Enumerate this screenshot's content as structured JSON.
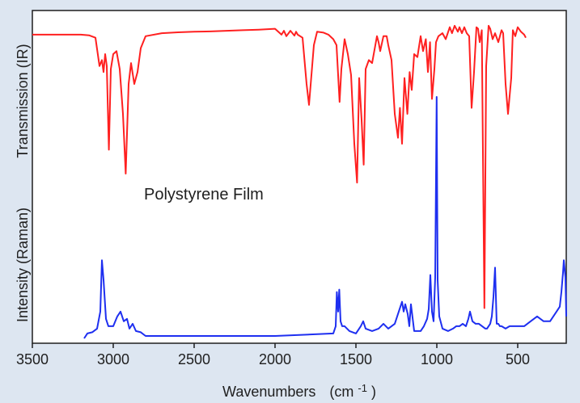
{
  "chart_data": {
    "type": "line",
    "title": "",
    "annotation": "Polystyrene Film",
    "xlabel": "Wavenumbers",
    "xlabel_unit_base": "(cm",
    "xlabel_unit_sup": "-1",
    "xlabel_unit_close": ")",
    "ylabel_top": "Transmission (IR)",
    "ylabel_bottom": "Intensity (Raman)",
    "xlim": [
      3500,
      200
    ],
    "x_reversed": true,
    "x_ticks": [
      3500,
      3000,
      2500,
      2000,
      1500,
      1000,
      500
    ],
    "x_tick_labels": [
      "3500",
      "3000",
      "2500",
      "2000",
      "1500",
      "1000",
      "500"
    ],
    "y_ticks_shown": false,
    "grid": false,
    "legend": "none",
    "series": [
      {
        "color": "#ff2020",
        "baseline_value": 0.965,
        "x": [
          3500,
          3200,
          3150,
          3110,
          3085,
          3070,
          3060,
          3050,
          3040,
          3027,
          3015,
          3000,
          2980,
          2960,
          2940,
          2923,
          2905,
          2890,
          2870,
          2850,
          2830,
          2800,
          2700,
          2600,
          2500,
          2400,
          2300,
          2200,
          2100,
          2000,
          1960,
          1945,
          1930,
          1905,
          1880,
          1870,
          1860,
          1830,
          1805,
          1790,
          1775,
          1760,
          1740,
          1700,
          1670,
          1640,
          1620,
          1601,
          1590,
          1570,
          1550,
          1530,
          1510,
          1493,
          1480,
          1465,
          1452,
          1440,
          1420,
          1400,
          1370,
          1360,
          1350,
          1330,
          1310,
          1300,
          1280,
          1260,
          1240,
          1228,
          1215,
          1200,
          1182,
          1168,
          1155,
          1140,
          1120,
          1100,
          1085,
          1068,
          1055,
          1042,
          1030,
          1015,
          1005,
          990,
          965,
          945,
          920,
          906,
          890,
          870,
          860,
          845,
          830,
          815,
          800,
          785,
          770,
          755,
          745,
          735,
          722,
          706,
          695,
          680,
          670,
          655,
          640,
          620,
          600,
          590,
          575,
          560,
          540,
          530,
          515,
          500,
          480,
          460,
          450
        ],
        "y": [
          0.965,
          0.965,
          0.963,
          0.955,
          0.86,
          0.88,
          0.84,
          0.9,
          0.86,
          0.58,
          0.85,
          0.9,
          0.91,
          0.85,
          0.7,
          0.5,
          0.8,
          0.87,
          0.8,
          0.84,
          0.92,
          0.96,
          0.97,
          0.973,
          0.975,
          0.976,
          0.978,
          0.98,
          0.982,
          0.985,
          0.965,
          0.978,
          0.96,
          0.978,
          0.962,
          0.975,
          0.965,
          0.955,
          0.8,
          0.73,
          0.83,
          0.93,
          0.975,
          0.972,
          0.965,
          0.95,
          0.93,
          0.74,
          0.85,
          0.95,
          0.9,
          0.83,
          0.6,
          0.47,
          0.82,
          0.68,
          0.53,
          0.85,
          0.88,
          0.87,
          0.96,
          0.94,
          0.91,
          0.96,
          0.96,
          0.93,
          0.88,
          0.7,
          0.62,
          0.72,
          0.6,
          0.82,
          0.7,
          0.84,
          0.78,
          0.9,
          0.89,
          0.96,
          0.91,
          0.95,
          0.84,
          0.94,
          0.75,
          0.85,
          0.94,
          0.96,
          0.97,
          0.95,
          0.99,
          0.97,
          0.995,
          0.975,
          0.99,
          0.97,
          0.99,
          0.97,
          0.96,
          0.72,
          0.84,
          0.99,
          0.985,
          0.94,
          0.98,
          0.05,
          0.86,
          0.995,
          0.985,
          0.95,
          0.97,
          0.94,
          0.98,
          0.97,
          0.8,
          0.7,
          0.82,
          0.98,
          0.96,
          0.99,
          0.975,
          0.965,
          0.955
        ]
      },
      {
        "color": "#1e2ff0",
        "baseline_value": 0.03,
        "x": [
          3180,
          3160,
          3130,
          3100,
          3080,
          3070,
          3060,
          3045,
          3030,
          3000,
          2975,
          2955,
          2935,
          2915,
          2900,
          2880,
          2860,
          2830,
          2800,
          2500,
          2000,
          1640,
          1625,
          1618,
          1610,
          1603,
          1595,
          1585,
          1570,
          1540,
          1500,
          1470,
          1455,
          1440,
          1400,
          1360,
          1330,
          1300,
          1260,
          1230,
          1215,
          1205,
          1195,
          1180,
          1170,
          1160,
          1140,
          1100,
          1080,
          1060,
          1050,
          1040,
          1030,
          1020,
          1010,
          1001,
          995,
          985,
          965,
          930,
          900,
          880,
          860,
          840,
          820,
          805,
          795,
          780,
          760,
          740,
          720,
          700,
          690,
          680,
          670,
          660,
          650,
          640,
          630,
          620,
          610,
          600,
          575,
          550,
          500,
          460,
          420,
          380,
          340,
          300,
          280,
          260,
          240,
          230,
          220,
          215,
          205,
          200
        ],
        "y": [
          0.01,
          0.03,
          0.035,
          0.05,
          0.12,
          0.33,
          0.25,
          0.09,
          0.06,
          0.06,
          0.1,
          0.12,
          0.08,
          0.09,
          0.05,
          0.07,
          0.04,
          0.035,
          0.02,
          0.02,
          0.02,
          0.03,
          0.06,
          0.2,
          0.12,
          0.21,
          0.08,
          0.06,
          0.06,
          0.04,
          0.03,
          0.06,
          0.08,
          0.05,
          0.04,
          0.05,
          0.07,
          0.05,
          0.07,
          0.13,
          0.16,
          0.12,
          0.15,
          0.11,
          0.06,
          0.15,
          0.04,
          0.04,
          0.06,
          0.09,
          0.13,
          0.27,
          0.12,
          0.08,
          0.26,
          1.0,
          0.25,
          0.1,
          0.05,
          0.04,
          0.05,
          0.06,
          0.06,
          0.07,
          0.06,
          0.09,
          0.12,
          0.08,
          0.07,
          0.07,
          0.06,
          0.05,
          0.05,
          0.06,
          0.07,
          0.1,
          0.18,
          0.3,
          0.07,
          0.07,
          0.06,
          0.06,
          0.05,
          0.06,
          0.06,
          0.06,
          0.08,
          0.1,
          0.08,
          0.08,
          0.1,
          0.12,
          0.14,
          0.2,
          0.28,
          0.33,
          0.26,
          0.1
        ]
      }
    ]
  },
  "colors": {
    "page_background": "#dde6f1",
    "plot_background": "#ffffff",
    "axis": "#1f1f1f"
  }
}
